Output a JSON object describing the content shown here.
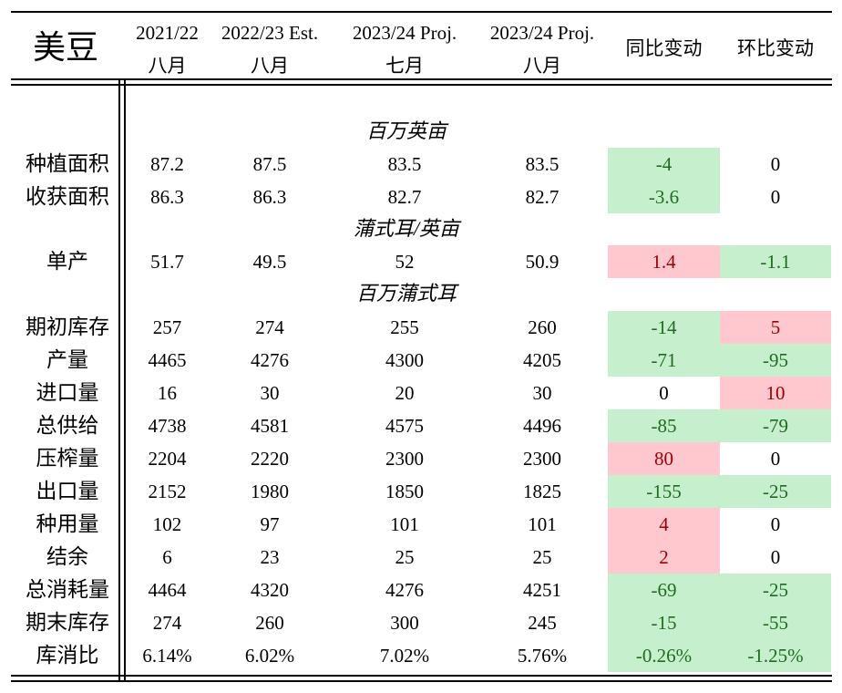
{
  "title": "美豆",
  "columns": [
    {
      "l1": "2021/22",
      "l2": "八月"
    },
    {
      "l1": "2022/23 Est.",
      "l2": "八月"
    },
    {
      "l1": "2023/24 Proj.",
      "l2": "七月"
    },
    {
      "l1": "2023/24 Proj.",
      "l2": "八月"
    },
    {
      "l1": "同比变动",
      "l2": ""
    },
    {
      "l1": "环比变动",
      "l2": ""
    }
  ],
  "units": [
    "百万英亩",
    "蒲式耳/英亩",
    "百万蒲式耳"
  ],
  "colors": {
    "green_bg": "#c6efce",
    "green_text": "#1f6b1f",
    "red_bg": "#ffc7ce",
    "red_text": "#9c0006"
  },
  "rows": [
    {
      "label": "种植面积",
      "values": [
        "87.2",
        "87.5",
        "83.5",
        "83.5"
      ],
      "yoy": "-4",
      "yoy_status": "green",
      "mom": "0",
      "mom_status": "neutral"
    },
    {
      "label": "收获面积",
      "values": [
        "86.3",
        "86.3",
        "82.7",
        "82.7"
      ],
      "yoy": "-3.6",
      "yoy_status": "green",
      "mom": "0",
      "mom_status": "neutral"
    },
    {
      "label": "单产",
      "values": [
        "51.7",
        "49.5",
        "52",
        "50.9"
      ],
      "yoy": "1.4",
      "yoy_status": "red",
      "mom": "-1.1",
      "mom_status": "green"
    },
    {
      "label": "期初库存",
      "values": [
        "257",
        "274",
        "255",
        "260"
      ],
      "yoy": "-14",
      "yoy_status": "green",
      "mom": "5",
      "mom_status": "red"
    },
    {
      "label": "产量",
      "values": [
        "4465",
        "4276",
        "4300",
        "4205"
      ],
      "yoy": "-71",
      "yoy_status": "green",
      "mom": "-95",
      "mom_status": "green"
    },
    {
      "label": "进口量",
      "values": [
        "16",
        "30",
        "20",
        "30"
      ],
      "yoy": "0",
      "yoy_status": "neutral",
      "mom": "10",
      "mom_status": "red"
    },
    {
      "label": "总供给",
      "values": [
        "4738",
        "4581",
        "4575",
        "4496"
      ],
      "yoy": "-85",
      "yoy_status": "green",
      "mom": "-79",
      "mom_status": "green"
    },
    {
      "label": "压榨量",
      "values": [
        "2204",
        "2220",
        "2300",
        "2300"
      ],
      "yoy": "80",
      "yoy_status": "red",
      "mom": "0",
      "mom_status": "neutral"
    },
    {
      "label": "出口量",
      "values": [
        "2152",
        "1980",
        "1850",
        "1825"
      ],
      "yoy": "-155",
      "yoy_status": "green",
      "mom": "-25",
      "mom_status": "green"
    },
    {
      "label": "种用量",
      "values": [
        "102",
        "97",
        "101",
        "101"
      ],
      "yoy": "4",
      "yoy_status": "red",
      "mom": "0",
      "mom_status": "neutral"
    },
    {
      "label": "结余",
      "values": [
        "6",
        "23",
        "25",
        "25"
      ],
      "yoy": "2",
      "yoy_status": "red",
      "mom": "0",
      "mom_status": "neutral"
    },
    {
      "label": "总消耗量",
      "values": [
        "4464",
        "4320",
        "4276",
        "4251"
      ],
      "yoy": "-69",
      "yoy_status": "green",
      "mom": "-25",
      "mom_status": "green"
    },
    {
      "label": "期末库存",
      "values": [
        "274",
        "260",
        "300",
        "245"
      ],
      "yoy": "-15",
      "yoy_status": "green",
      "mom": "-55",
      "mom_status": "green"
    },
    {
      "label": "库消比",
      "values": [
        "6.14%",
        "6.02%",
        "7.02%",
        "5.76%"
      ],
      "yoy": "-0.26%",
      "yoy_status": "green",
      "mom": "-1.25%",
      "mom_status": "green"
    }
  ]
}
